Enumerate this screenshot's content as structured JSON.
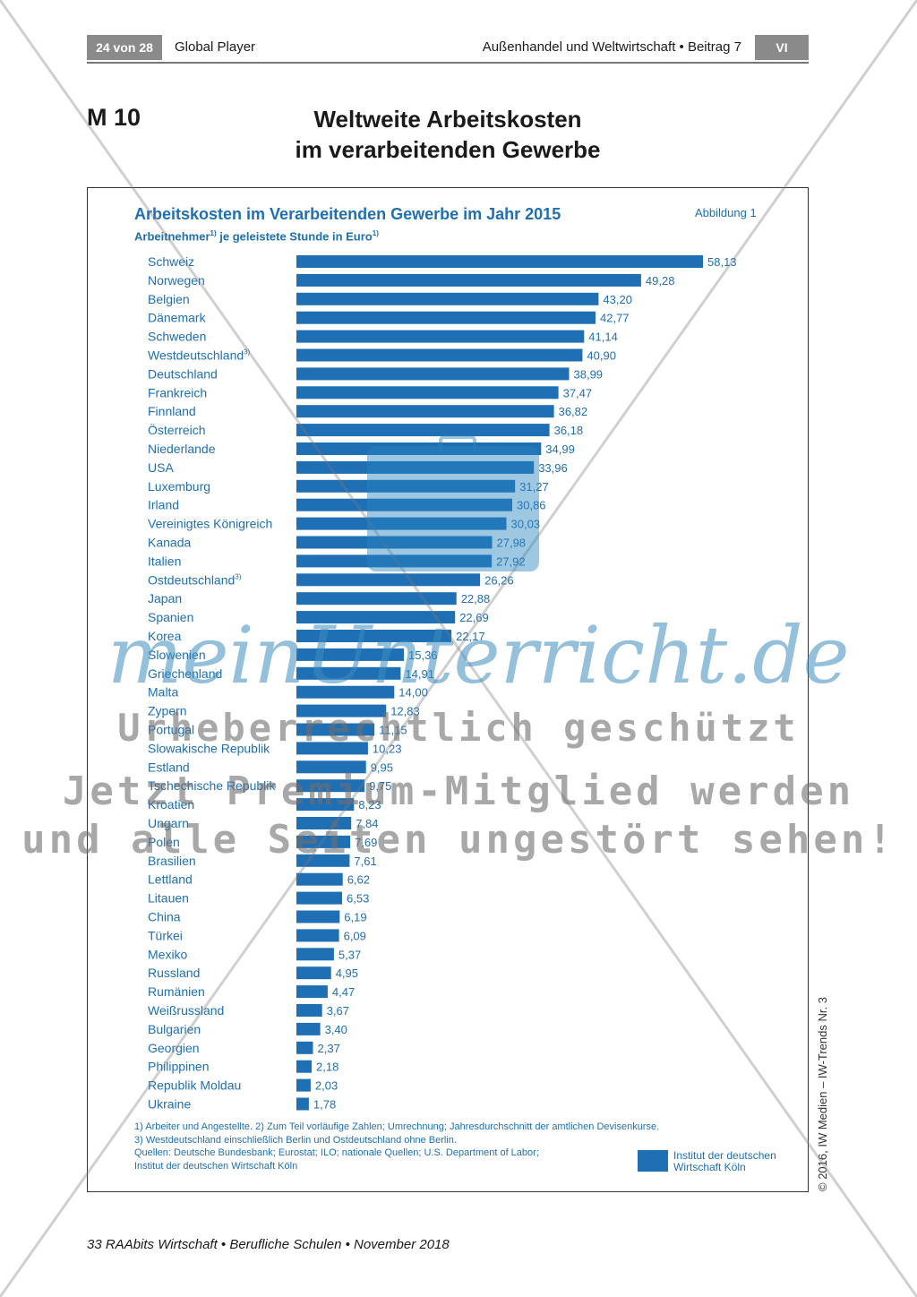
{
  "header": {
    "page_tag": "24 von 28",
    "left_title": "Global Player",
    "right_title": "Außenhandel und Weltwirtschaft • Beitrag 7",
    "section_chip": "VI"
  },
  "material": {
    "label": "M 10",
    "title_line1": "Weltweite Arbeitskosten",
    "title_line2": "im verarbeitenden Gewerbe"
  },
  "chart_data": {
    "type": "bar",
    "orientation": "horizontal",
    "title": "Arbeitskosten im Verarbeitenden Gewerbe im Jahr 2015",
    "subtitle_part1": "Arbeitnehmer",
    "subtitle_part2": " je geleistete Stunde in Euro",
    "footnote_marker": "1)",
    "figure_label": "Abbildung 1",
    "unit": "Euro",
    "categories": [
      {
        "name": "Schweiz",
        "mark": "",
        "value": 58.13,
        "label": "58,13"
      },
      {
        "name": "Norwegen",
        "mark": "",
        "value": 49.28,
        "label": "49,28"
      },
      {
        "name": "Belgien",
        "mark": "",
        "value": 43.2,
        "label": "43,20"
      },
      {
        "name": "Dänemark",
        "mark": "",
        "value": 42.77,
        "label": "42,77"
      },
      {
        "name": "Schweden",
        "mark": "",
        "value": 41.14,
        "label": "41,14"
      },
      {
        "name": "Westdeutschland",
        "mark": "3)",
        "value": 40.9,
        "label": "40,90"
      },
      {
        "name": "Deutschland",
        "mark": "",
        "value": 38.99,
        "label": "38,99"
      },
      {
        "name": "Frankreich",
        "mark": "",
        "value": 37.47,
        "label": "37,47"
      },
      {
        "name": "Finnland",
        "mark": "",
        "value": 36.82,
        "label": "36,82"
      },
      {
        "name": "Österreich",
        "mark": "",
        "value": 36.18,
        "label": "36,18"
      },
      {
        "name": "Niederlande",
        "mark": "",
        "value": 34.99,
        "label": "34,99"
      },
      {
        "name": "USA",
        "mark": "",
        "value": 33.96,
        "label": "33,96"
      },
      {
        "name": "Luxemburg",
        "mark": "",
        "value": 31.27,
        "label": "31,27"
      },
      {
        "name": "Irland",
        "mark": "",
        "value": 30.86,
        "label": "30,86"
      },
      {
        "name": "Vereinigtes Königreich",
        "mark": "",
        "value": 30.03,
        "label": "30,03"
      },
      {
        "name": "Kanada",
        "mark": "",
        "value": 27.98,
        "label": "27,98"
      },
      {
        "name": "Italien",
        "mark": "",
        "value": 27.92,
        "label": "27,92"
      },
      {
        "name": "Ostdeutschland",
        "mark": "3)",
        "value": 26.26,
        "label": "26,26"
      },
      {
        "name": "Japan",
        "mark": "",
        "value": 22.88,
        "label": "22,88"
      },
      {
        "name": "Spanien",
        "mark": "",
        "value": 22.69,
        "label": "22,69"
      },
      {
        "name": "Korea",
        "mark": "",
        "value": 22.17,
        "label": "22,17"
      },
      {
        "name": "Slowenien",
        "mark": "",
        "value": 15.36,
        "label": "15,36"
      },
      {
        "name": "Griechenland",
        "mark": "",
        "value": 14.91,
        "label": "14,91"
      },
      {
        "name": "Malta",
        "mark": "",
        "value": 14.0,
        "label": "14,00"
      },
      {
        "name": "Zypern",
        "mark": "",
        "value": 12.83,
        "label": "12,83"
      },
      {
        "name": "Portugal",
        "mark": "",
        "value": 11.15,
        "label": "11,15"
      },
      {
        "name": "Slowakische Republik",
        "mark": "",
        "value": 10.23,
        "label": "10,23"
      },
      {
        "name": "Estland",
        "mark": "",
        "value": 9.95,
        "label": "9,95"
      },
      {
        "name": "Tschechische Republik",
        "mark": "",
        "value": 9.75,
        "label": "9,75"
      },
      {
        "name": "Kroatien",
        "mark": "",
        "value": 8.23,
        "label": "8,23"
      },
      {
        "name": "Ungarn",
        "mark": "",
        "value": 7.84,
        "label": "7,84"
      },
      {
        "name": "Polen",
        "mark": "",
        "value": 7.69,
        "label": "7,69"
      },
      {
        "name": "Brasilien",
        "mark": "",
        "value": 7.61,
        "label": "7,61"
      },
      {
        "name": "Lettland",
        "mark": "",
        "value": 6.62,
        "label": "6,62"
      },
      {
        "name": "Litauen",
        "mark": "",
        "value": 6.53,
        "label": "6,53"
      },
      {
        "name": "China",
        "mark": "",
        "value": 6.19,
        "label": "6,19"
      },
      {
        "name": "Türkei",
        "mark": "",
        "value": 6.09,
        "label": "6,09"
      },
      {
        "name": "Mexiko",
        "mark": "",
        "value": 5.37,
        "label": "5,37"
      },
      {
        "name": "Russland",
        "mark": "",
        "value": 4.95,
        "label": "4,95"
      },
      {
        "name": "Rumänien",
        "mark": "",
        "value": 4.47,
        "label": "4,47"
      },
      {
        "name": "Weißrussland",
        "mark": "",
        "value": 3.67,
        "label": "3,67"
      },
      {
        "name": "Bulgarien",
        "mark": "",
        "value": 3.4,
        "label": "3,40"
      },
      {
        "name": "Georgien",
        "mark": "",
        "value": 2.37,
        "label": "2,37"
      },
      {
        "name": "Philippinen",
        "mark": "",
        "value": 2.18,
        "label": "2,18"
      },
      {
        "name": "Republik Moldau",
        "mark": "",
        "value": 2.03,
        "label": "2,03"
      },
      {
        "name": "Ukraine",
        "mark": "",
        "value": 1.78,
        "label": "1,78"
      }
    ],
    "xlim": [
      0,
      58.13
    ],
    "grid": false,
    "legend": "none",
    "bar_color": "#1f6fb5"
  },
  "footnotes": {
    "line1": "1) Arbeiter und Angestellte. 2) Zum Teil vorläufige Zahlen; Umrechnung;      Jahresdurchschnitt der amtlichen Devisenkurse.",
    "line2": "3) Westdeutschland einschließlich Berlin und Ostdeutschland ohne Berlin.",
    "line3": "Quellen: Deutsche Bundesbank; Eurostat; ILO; nationale Quellen; U.S. Department of Labor;",
    "line4": "Institut der deutschen Wirtschaft Köln"
  },
  "logo": {
    "line1": "Institut der deutschen",
    "line2": "Wirtschaft Köln"
  },
  "copyright": "© 2016, IW Medien – IW-Trends Nr. 3",
  "footer": "33  RAAbits Wirtschaft • Berufliche Schulen • November 2018",
  "watermark": {
    "brand": "meinUnterricht.de",
    "line1": "Urheberrechtlich geschützt",
    "line2": "Jetzt Premium-Mitglied werden",
    "line3": "und alle Seiten ungestört sehen!"
  }
}
